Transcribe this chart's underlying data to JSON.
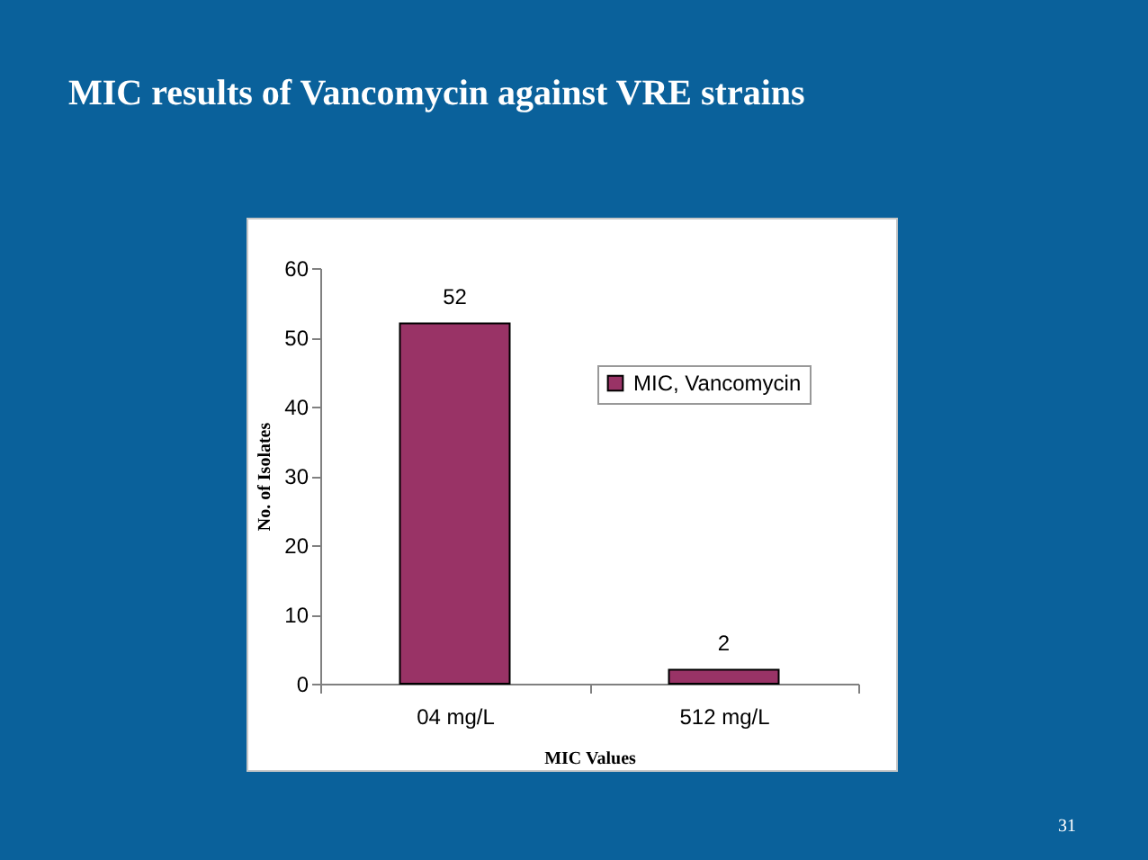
{
  "chart_data": {
    "type": "bar",
    "title": "MIC results of Vancomycin against VRE strains",
    "categories": [
      "04  mg/L",
      "512 mg/L"
    ],
    "series": [
      {
        "name": "MIC, Vancomycin",
        "color": "#993366",
        "values": [
          52,
          2
        ]
      }
    ],
    "xlabel": "MIC Values",
    "ylabel": "No. of Isolates",
    "ylim": [
      0,
      60
    ],
    "yticks": [
      0,
      10,
      20,
      30,
      40,
      50,
      60
    ],
    "data_labels": true,
    "grid": false,
    "legend": "right",
    "annotations": [
      "31"
    ]
  }
}
